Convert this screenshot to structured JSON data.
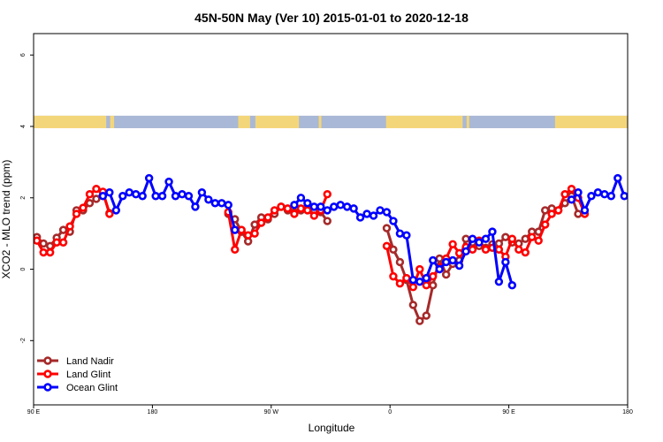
{
  "chart_data": {
    "type": "line",
    "title": "45N-50N May (Ver 10)   2015-01-01 to 2020-12-18",
    "xlabel": "Longitude",
    "ylabel": "XCO2 - MLO trend (ppm)",
    "x_axis_ticks": [
      {
        "lon": 90,
        "label": "90 E"
      },
      {
        "lon": 180,
        "label": "180"
      },
      {
        "lon": 270,
        "label": "90 W"
      },
      {
        "lon": 360,
        "label": "0"
      },
      {
        "lon": 450,
        "label": "90 E"
      },
      {
        "lon": 540,
        "label": "180"
      }
    ],
    "y_axis_ticks": [
      {
        "value": -2,
        "label": "-2"
      },
      {
        "value": 0,
        "label": "0"
      },
      {
        "value": 2,
        "label": "2"
      },
      {
        "value": 4,
        "label": "4"
      },
      {
        "value": 6,
        "label": "6"
      }
    ],
    "xlim": [
      90,
      540
    ],
    "ylim": [
      -3.8,
      6.6
    ],
    "grid": false,
    "legend_position": "bottom-left",
    "landmask": {
      "y_range": [
        3.95,
        4.3
      ],
      "land_color": "#f4d67a",
      "ocean_color": "#a9b8d6",
      "land_intervals": [
        [
          90,
          145
        ],
        [
          148,
          151
        ],
        [
          245,
          254
        ],
        [
          258,
          291
        ],
        [
          306,
          308
        ],
        [
          357,
          415
        ],
        [
          418,
          420
        ],
        [
          485,
          540
        ]
      ]
    },
    "series": [
      {
        "name": "Land Nadir",
        "color": "#a52a2a",
        "points": [
          [
            92.5,
            0.9
          ],
          [
            97.5,
            0.72
          ],
          [
            102.5,
            0.65
          ],
          [
            107.5,
            0.88
          ],
          [
            112.5,
            1.1
          ],
          [
            117.5,
            1.05
          ],
          [
            122.5,
            1.65
          ],
          [
            127.5,
            1.65
          ],
          [
            132.5,
            1.85
          ],
          [
            137.5,
            1.97
          ],
          [
            142.5,
            2.15
          ],
          [
            147.5,
            1.57
          ],
          [
            237.5,
            1.55
          ],
          [
            242.5,
            1.4
          ],
          [
            247.5,
            1.05
          ],
          [
            252.5,
            0.78
          ],
          [
            257.5,
            1.25
          ],
          [
            262.5,
            1.45
          ],
          [
            267.5,
            1.4
          ],
          [
            272.5,
            1.55
          ],
          [
            277.5,
            1.75
          ],
          [
            282.5,
            1.65
          ],
          [
            287.5,
            1.6
          ],
          [
            292.5,
            1.65
          ],
          [
            297.5,
            1.75
          ],
          [
            302.5,
            1.65
          ],
          [
            307.5,
            1.6
          ],
          [
            312.5,
            1.35
          ],
          [
            357.5,
            1.15
          ],
          [
            362.5,
            0.55
          ],
          [
            367.5,
            0.2
          ],
          [
            372.5,
            -0.3
          ],
          [
            377.5,
            -1.0
          ],
          [
            382.5,
            -1.45
          ],
          [
            387.5,
            -1.3
          ],
          [
            392.5,
            -0.45
          ],
          [
            397.5,
            0.3
          ],
          [
            402.5,
            -0.15
          ],
          [
            407.5,
            0.15
          ],
          [
            412.5,
            0.25
          ],
          [
            417.5,
            0.85
          ],
          [
            422.5,
            0.75
          ],
          [
            427.5,
            0.65
          ],
          [
            432.5,
            0.6
          ],
          [
            437.5,
            0.7
          ],
          [
            442.5,
            0.72
          ],
          [
            447.5,
            0.9
          ],
          [
            452.5,
            0.75
          ],
          [
            457.5,
            0.72
          ],
          [
            462.5,
            0.85
          ],
          [
            467.5,
            1.05
          ],
          [
            472.5,
            1.05
          ],
          [
            477.5,
            1.65
          ],
          [
            482.5,
            1.7
          ],
          [
            487.5,
            1.65
          ],
          [
            492.5,
            1.85
          ],
          [
            497.5,
            2.05
          ],
          [
            502.5,
            1.55
          ]
        ]
      },
      {
        "name": "Land Glint",
        "color": "#ff0000",
        "points": [
          [
            92.5,
            0.8
          ],
          [
            97.5,
            0.47
          ],
          [
            102.5,
            0.47
          ],
          [
            107.5,
            0.75
          ],
          [
            112.5,
            0.75
          ],
          [
            117.5,
            1.2
          ],
          [
            122.5,
            1.55
          ],
          [
            127.5,
            1.72
          ],
          [
            132.5,
            2.1
          ],
          [
            137.5,
            2.25
          ],
          [
            142.5,
            2.17
          ],
          [
            147.5,
            1.55
          ],
          [
            237.5,
            1.6
          ],
          [
            242.5,
            0.55
          ],
          [
            247.5,
            1.1
          ],
          [
            252.5,
            0.95
          ],
          [
            257.5,
            1.0
          ],
          [
            262.5,
            1.3
          ],
          [
            267.5,
            1.45
          ],
          [
            272.5,
            1.65
          ],
          [
            277.5,
            1.75
          ],
          [
            282.5,
            1.7
          ],
          [
            287.5,
            1.55
          ],
          [
            292.5,
            1.7
          ],
          [
            297.5,
            1.65
          ],
          [
            302.5,
            1.5
          ],
          [
            307.5,
            1.65
          ],
          [
            312.5,
            2.1
          ],
          [
            357.5,
            0.65
          ],
          [
            362.5,
            -0.2
          ],
          [
            367.5,
            -0.4
          ],
          [
            372.5,
            -0.25
          ],
          [
            377.5,
            -0.5
          ],
          [
            382.5,
            0.0
          ],
          [
            387.5,
            -0.45
          ],
          [
            392.5,
            -0.2
          ],
          [
            397.5,
            0.05
          ],
          [
            402.5,
            0.3
          ],
          [
            407.5,
            0.7
          ],
          [
            412.5,
            0.45
          ],
          [
            417.5,
            0.62
          ],
          [
            422.5,
            0.55
          ],
          [
            427.5,
            0.8
          ],
          [
            432.5,
            0.55
          ],
          [
            437.5,
            0.6
          ],
          [
            442.5,
            0.55
          ],
          [
            447.5,
            0.35
          ],
          [
            452.5,
            0.85
          ],
          [
            457.5,
            0.55
          ],
          [
            462.5,
            0.47
          ],
          [
            467.5,
            0.9
          ],
          [
            472.5,
            0.8
          ],
          [
            477.5,
            1.25
          ],
          [
            482.5,
            1.55
          ],
          [
            487.5,
            1.65
          ],
          [
            492.5,
            2.1
          ],
          [
            497.5,
            2.25
          ],
          [
            502.5,
            2.0
          ],
          [
            507.5,
            1.55
          ]
        ]
      },
      {
        "name": "Ocean Glint",
        "color": "#0000ff",
        "points": [
          [
            142.5,
            2.05
          ],
          [
            147.5,
            2.15
          ],
          [
            152.5,
            1.65
          ],
          [
            157.5,
            2.05
          ],
          [
            162.5,
            2.15
          ],
          [
            167.5,
            2.1
          ],
          [
            172.5,
            2.05
          ],
          [
            177.5,
            2.55
          ],
          [
            182.5,
            2.05
          ],
          [
            187.5,
            2.05
          ],
          [
            192.5,
            2.45
          ],
          [
            197.5,
            2.05
          ],
          [
            202.5,
            2.1
          ],
          [
            207.5,
            2.05
          ],
          [
            212.5,
            1.75
          ],
          [
            217.5,
            2.15
          ],
          [
            222.5,
            1.95
          ],
          [
            227.5,
            1.85
          ],
          [
            232.5,
            1.85
          ],
          [
            237.5,
            1.8
          ],
          [
            242.5,
            1.1
          ],
          [
            287.5,
            1.8
          ],
          [
            292.5,
            2.0
          ],
          [
            297.5,
            1.85
          ],
          [
            302.5,
            1.75
          ],
          [
            307.5,
            1.75
          ],
          [
            312.5,
            1.65
          ],
          [
            317.5,
            1.75
          ],
          [
            322.5,
            1.8
          ],
          [
            327.5,
            1.75
          ],
          [
            332.5,
            1.7
          ],
          [
            337.5,
            1.45
          ],
          [
            342.5,
            1.55
          ],
          [
            347.5,
            1.5
          ],
          [
            352.5,
            1.65
          ],
          [
            357.5,
            1.6
          ],
          [
            362.5,
            1.35
          ],
          [
            367.5,
            1.0
          ],
          [
            372.5,
            0.95
          ],
          [
            377.5,
            -0.3
          ],
          [
            382.5,
            -0.35
          ],
          [
            387.5,
            -0.25
          ],
          [
            392.5,
            0.25
          ],
          [
            397.5,
            0.0
          ],
          [
            402.5,
            0.2
          ],
          [
            407.5,
            0.25
          ],
          [
            412.5,
            0.1
          ],
          [
            417.5,
            0.5
          ],
          [
            422.5,
            0.85
          ],
          [
            427.5,
            0.75
          ],
          [
            432.5,
            0.85
          ],
          [
            437.5,
            1.05
          ],
          [
            442.5,
            -0.35
          ],
          [
            447.5,
            0.2
          ],
          [
            452.5,
            -0.45
          ],
          [
            497.5,
            1.95
          ],
          [
            502.5,
            2.15
          ],
          [
            507.5,
            1.65
          ],
          [
            512.5,
            2.05
          ],
          [
            517.5,
            2.15
          ],
          [
            522.5,
            2.1
          ],
          [
            527.5,
            2.05
          ],
          [
            532.5,
            2.55
          ],
          [
            537.5,
            2.05
          ]
        ]
      }
    ]
  }
}
